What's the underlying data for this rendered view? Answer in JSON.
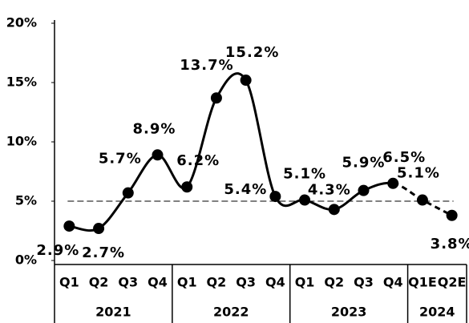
{
  "chart_data": {
    "type": "line",
    "categories": [
      "Q1",
      "Q2",
      "Q3",
      "Q4",
      "Q1",
      "Q2",
      "Q3",
      "Q4",
      "Q1",
      "Q2",
      "Q3",
      "Q4",
      "Q1E",
      "Q2E"
    ],
    "x_groups": [
      "2021",
      "2022",
      "2023",
      "2024"
    ],
    "x_group_sizes": [
      4,
      4,
      4,
      2
    ],
    "series": [
      {
        "color": "#000000",
        "values": [
          2.9,
          2.7,
          5.7,
          8.9,
          6.2,
          13.7,
          15.2,
          5.4,
          5.1,
          4.3,
          5.9,
          6.5,
          5.1,
          3.8
        ],
        "value_labels": [
          "2.9%",
          "2.7%",
          "5.7%",
          "8.9%",
          "6.2%",
          "13.7%",
          "15.2%",
          "5.4%",
          "5.1%",
          "4.3%",
          "5.9%",
          "6.5%",
          "5.1%",
          "3.8%"
        ],
        "dashed_from": 12
      }
    ],
    "reference_line": 5,
    "ylim": [
      0,
      20
    ],
    "yticks": [
      {
        "value": 0,
        "label": "0%"
      },
      {
        "value": 5,
        "label": "5%"
      },
      {
        "value": 10,
        "label": "10%"
      },
      {
        "value": 15,
        "label": "15%"
      },
      {
        "value": 20,
        "label": "20%"
      }
    ],
    "grid": false
  }
}
